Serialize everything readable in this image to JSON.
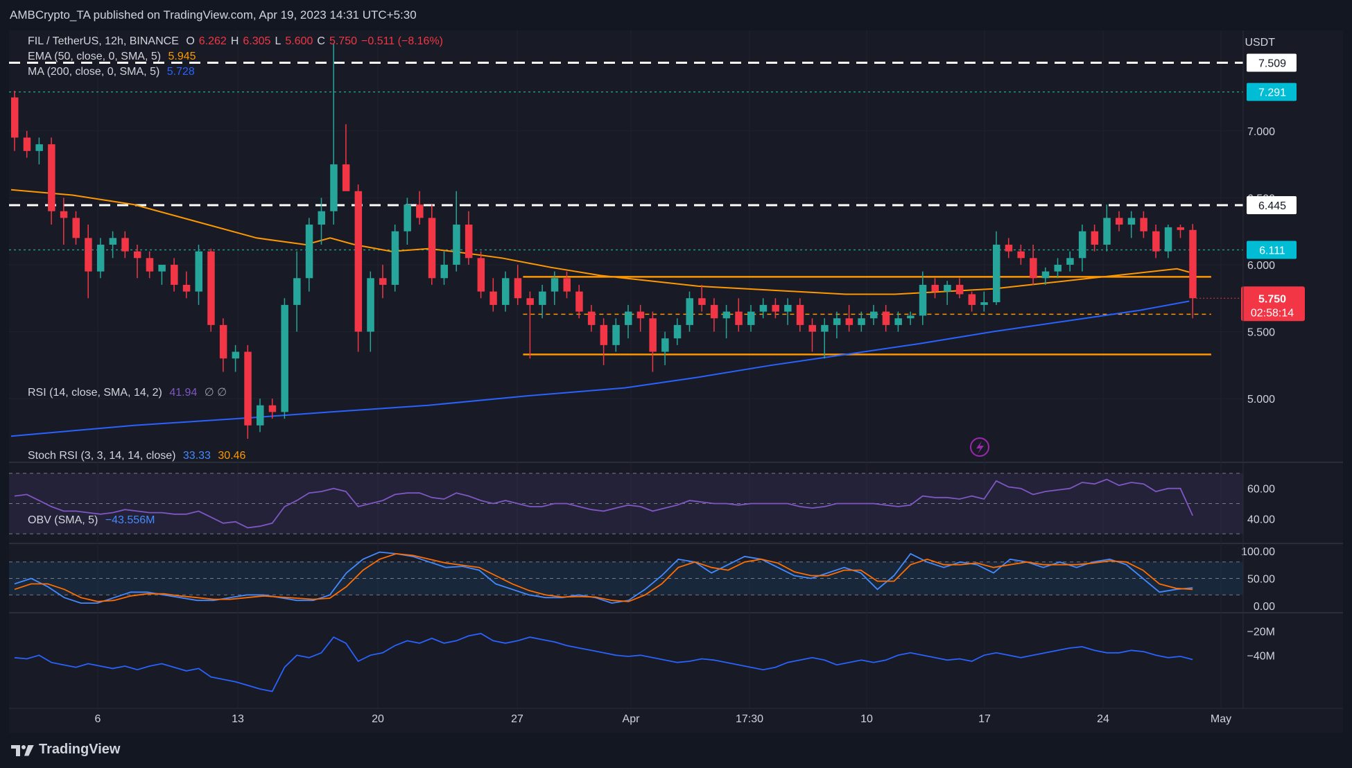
{
  "header": {
    "publisher": "AMBCrypto_TA published on TradingView.com, Apr 19, 2023 14:31 UTC+5:30"
  },
  "legend": {
    "symbol": "FIL / TetherUS, 12h, BINANCE",
    "o_label": "O",
    "o_value": "6.262",
    "h_label": "H",
    "h_value": "6.305",
    "l_label": "L",
    "l_value": "5.600",
    "c_label": "C",
    "c_value": "5.750",
    "change": "−0.511 (−8.16%)",
    "ema_label": "EMA (50, close, 0, SMA, 5)",
    "ema_value": "5.945",
    "ma_label": "MA (200, close, 0, SMA, 5)",
    "ma_value": "5.728",
    "rsi_label": "RSI (14, close, SMA, 14, 2)",
    "rsi_value": "41.94",
    "rsi_extra": "∅  ∅",
    "stoch_label": "Stoch RSI (3, 3, 14, 14, close)",
    "stoch_k": "33.33",
    "stoch_d": "30.46",
    "obv_label": "OBV (SMA, 5)",
    "obv_value": "−43.556M"
  },
  "footer": {
    "brand": "TradingView"
  },
  "colors": {
    "up": "#26a69a",
    "down": "#f23645",
    "ema": "#ff9800",
    "ma": "#2962ff",
    "rsi": "#7e57c2",
    "stoch_k": "#448aff",
    "stoch_d": "#ff6d00",
    "obv": "#2962ff",
    "level_white": "#ffffff",
    "level_cyan": "#22ab94",
    "range": "#ff9800"
  },
  "chart_data": {
    "type": "candlestick",
    "title": "FIL / TetherUS, 12h, BINANCE",
    "currency": "USDT",
    "price_axis_ticks": [
      "7.000",
      "6.500",
      "6.000",
      "5.500",
      "5.000"
    ],
    "price_ylim": [
      4.55,
      7.75
    ],
    "x_tick_labels": [
      "6",
      "13",
      "20",
      "27",
      "Apr",
      "17:30",
      "10",
      "17",
      "24",
      "May"
    ],
    "candles": [
      [
        7.25,
        7.3,
        6.85,
        6.95
      ],
      [
        6.95,
        7.0,
        6.8,
        6.85
      ],
      [
        6.85,
        6.95,
        6.75,
        6.9
      ],
      [
        6.9,
        6.95,
        6.3,
        6.4
      ],
      [
        6.4,
        6.5,
        6.15,
        6.35
      ],
      [
        6.35,
        6.4,
        6.15,
        6.2
      ],
      [
        6.2,
        6.3,
        5.75,
        5.95
      ],
      [
        5.95,
        6.2,
        5.9,
        6.15
      ],
      [
        6.15,
        6.25,
        6.05,
        6.2
      ],
      [
        6.2,
        6.25,
        6.05,
        6.1
      ],
      [
        6.1,
        6.15,
        5.9,
        6.05
      ],
      [
        6.05,
        6.1,
        5.9,
        5.95
      ],
      [
        5.95,
        6.0,
        5.85,
        6.0
      ],
      [
        6.0,
        6.05,
        5.8,
        5.85
      ],
      [
        5.85,
        5.95,
        5.75,
        5.8
      ],
      [
        5.8,
        6.15,
        5.7,
        6.1
      ],
      [
        6.1,
        6.12,
        5.5,
        5.55
      ],
      [
        5.55,
        5.6,
        5.2,
        5.3
      ],
      [
        5.3,
        5.4,
        5.2,
        5.35
      ],
      [
        5.35,
        5.4,
        4.7,
        4.8
      ],
      [
        4.8,
        5.0,
        4.75,
        4.95
      ],
      [
        4.95,
        5.0,
        4.85,
        4.9
      ],
      [
        4.9,
        5.75,
        4.85,
        5.7
      ],
      [
        5.7,
        6.1,
        5.5,
        5.9
      ],
      [
        5.9,
        6.35,
        5.8,
        6.3
      ],
      [
        6.3,
        6.5,
        6.15,
        6.4
      ],
      [
        6.4,
        7.65,
        6.3,
        6.75
      ],
      [
        6.75,
        7.05,
        6.55,
        6.55
      ],
      [
        6.55,
        6.6,
        5.35,
        5.5
      ],
      [
        5.5,
        5.95,
        5.35,
        5.9
      ],
      [
        5.9,
        6.0,
        5.75,
        5.85
      ],
      [
        5.85,
        6.3,
        5.8,
        6.25
      ],
      [
        6.25,
        6.5,
        6.15,
        6.45
      ],
      [
        6.45,
        6.55,
        6.3,
        6.35
      ],
      [
        6.35,
        6.45,
        5.85,
        5.9
      ],
      [
        5.9,
        6.1,
        5.85,
        6.0
      ],
      [
        6.0,
        6.55,
        5.95,
        6.3
      ],
      [
        6.3,
        6.4,
        6.0,
        6.05
      ],
      [
        6.05,
        6.1,
        5.75,
        5.8
      ],
      [
        5.8,
        5.9,
        5.65,
        5.7
      ],
      [
        5.7,
        5.95,
        5.65,
        5.9
      ],
      [
        5.9,
        6.0,
        5.7,
        5.75
      ],
      [
        5.75,
        5.8,
        5.3,
        5.7
      ],
      [
        5.7,
        5.85,
        5.6,
        5.8
      ],
      [
        5.8,
        5.95,
        5.7,
        5.9
      ],
      [
        5.9,
        5.95,
        5.75,
        5.8
      ],
      [
        5.8,
        5.85,
        5.6,
        5.65
      ],
      [
        5.65,
        5.7,
        5.5,
        5.55
      ],
      [
        5.55,
        5.6,
        5.25,
        5.4
      ],
      [
        5.4,
        5.6,
        5.35,
        5.55
      ],
      [
        5.55,
        5.7,
        5.45,
        5.65
      ],
      [
        5.65,
        5.7,
        5.5,
        5.6
      ],
      [
        5.6,
        5.65,
        5.2,
        5.35
      ],
      [
        5.35,
        5.5,
        5.25,
        5.45
      ],
      [
        5.45,
        5.6,
        5.4,
        5.55
      ],
      [
        5.55,
        5.8,
        5.5,
        5.75
      ],
      [
        5.75,
        5.85,
        5.65,
        5.7
      ],
      [
        5.7,
        5.75,
        5.5,
        5.6
      ],
      [
        5.6,
        5.7,
        5.45,
        5.65
      ],
      [
        5.65,
        5.75,
        5.5,
        5.55
      ],
      [
        5.55,
        5.7,
        5.5,
        5.65
      ],
      [
        5.65,
        5.75,
        5.6,
        5.7
      ],
      [
        5.7,
        5.75,
        5.6,
        5.65
      ],
      [
        5.65,
        5.75,
        5.55,
        5.7
      ],
      [
        5.7,
        5.75,
        5.5,
        5.55
      ],
      [
        5.55,
        5.6,
        5.35,
        5.5
      ],
      [
        5.5,
        5.6,
        5.3,
        5.55
      ],
      [
        5.55,
        5.65,
        5.45,
        5.6
      ],
      [
        5.6,
        5.7,
        5.5,
        5.55
      ],
      [
        5.55,
        5.65,
        5.5,
        5.6
      ],
      [
        5.6,
        5.7,
        5.55,
        5.65
      ],
      [
        5.65,
        5.7,
        5.5,
        5.55
      ],
      [
        5.55,
        5.65,
        5.5,
        5.6
      ],
      [
        5.6,
        5.65,
        5.55,
        5.62
      ],
      [
        5.62,
        5.95,
        5.55,
        5.85
      ],
      [
        5.85,
        5.9,
        5.75,
        5.8
      ],
      [
        5.8,
        5.88,
        5.7,
        5.85
      ],
      [
        5.85,
        5.9,
        5.75,
        5.78
      ],
      [
        5.78,
        5.8,
        5.65,
        5.7
      ],
      [
        5.7,
        5.8,
        5.65,
        5.72
      ],
      [
        5.72,
        6.25,
        5.7,
        6.15
      ],
      [
        6.15,
        6.2,
        6.05,
        6.1
      ],
      [
        6.1,
        6.15,
        6.0,
        6.05
      ],
      [
        6.05,
        6.15,
        5.85,
        5.9
      ],
      [
        5.9,
        5.98,
        5.85,
        5.95
      ],
      [
        5.95,
        6.05,
        5.9,
        6.0
      ],
      [
        6.0,
        6.1,
        5.95,
        6.05
      ],
      [
        6.05,
        6.3,
        5.95,
        6.25
      ],
      [
        6.25,
        6.3,
        6.1,
        6.15
      ],
      [
        6.15,
        6.45,
        6.1,
        6.35
      ],
      [
        6.35,
        6.4,
        6.25,
        6.3
      ],
      [
        6.3,
        6.4,
        6.2,
        6.35
      ],
      [
        6.35,
        6.4,
        6.2,
        6.25
      ],
      [
        6.25,
        6.3,
        6.05,
        6.1
      ],
      [
        6.1,
        6.3,
        6.05,
        6.28
      ],
      [
        6.28,
        6.3,
        6.2,
        6.26
      ],
      [
        6.26,
        6.305,
        5.6,
        5.75
      ]
    ],
    "ema50": [
      [
        0,
        6.56
      ],
      [
        5,
        6.52
      ],
      [
        10,
        6.45
      ],
      [
        16,
        6.3
      ],
      [
        20,
        6.2
      ],
      [
        24,
        6.15
      ],
      [
        26,
        6.2
      ],
      [
        28,
        6.15
      ],
      [
        31,
        6.1
      ],
      [
        34,
        6.12
      ],
      [
        36,
        6.1
      ],
      [
        40,
        6.05
      ],
      [
        44,
        5.98
      ],
      [
        48,
        5.92
      ],
      [
        52,
        5.88
      ],
      [
        56,
        5.84
      ],
      [
        60,
        5.82
      ],
      [
        64,
        5.8
      ],
      [
        68,
        5.78
      ],
      [
        72,
        5.78
      ],
      [
        76,
        5.8
      ],
      [
        80,
        5.82
      ],
      [
        84,
        5.86
      ],
      [
        88,
        5.9
      ],
      [
        92,
        5.94
      ],
      [
        95,
        5.97
      ],
      [
        96,
        5.945
      ]
    ],
    "ma200": [
      [
        0,
        4.72
      ],
      [
        10,
        4.8
      ],
      [
        20,
        4.86
      ],
      [
        26,
        4.9
      ],
      [
        34,
        4.95
      ],
      [
        42,
        5.02
      ],
      [
        50,
        5.08
      ],
      [
        56,
        5.16
      ],
      [
        62,
        5.25
      ],
      [
        68,
        5.33
      ],
      [
        74,
        5.41
      ],
      [
        80,
        5.5
      ],
      [
        86,
        5.58
      ],
      [
        92,
        5.66
      ],
      [
        96,
        5.728
      ]
    ],
    "horizontal_levels": [
      {
        "value": 7.509,
        "label": "7.509",
        "style": "white-dashed"
      },
      {
        "value": 7.291,
        "label": "7.291",
        "style": "cyan-dotted"
      },
      {
        "value": 6.445,
        "label": "6.445",
        "style": "white-dashed"
      },
      {
        "value": 6.111,
        "label": "6.111",
        "style": "cyan-dotted"
      }
    ],
    "range_box": {
      "start": 42,
      "end": 97,
      "upper": 5.91,
      "mid": 5.63,
      "lower": 5.33
    },
    "last_price": {
      "value": 5.75,
      "label": "5.750",
      "countdown": "02:58:14"
    },
    "rsi": {
      "ticks": [
        "60.00",
        "40.00"
      ],
      "ylim": [
        25,
        75
      ],
      "band": [
        30,
        70
      ],
      "values": [
        55,
        56,
        52,
        48,
        45,
        45,
        44,
        43,
        44,
        46,
        45,
        44,
        44,
        43,
        43,
        45,
        41,
        37,
        38,
        34,
        35,
        37,
        48,
        52,
        57,
        58,
        60,
        58,
        48,
        50,
        52,
        56,
        57,
        57,
        54,
        53,
        57,
        55,
        52,
        50,
        52,
        50,
        48,
        48,
        50,
        50,
        48,
        46,
        45,
        47,
        49,
        48,
        45,
        47,
        49,
        52,
        51,
        50,
        50,
        49,
        50,
        50,
        50,
        50,
        48,
        47,
        48,
        50,
        50,
        50,
        50,
        49,
        48,
        49,
        55,
        54,
        54,
        53,
        55,
        53,
        65,
        61,
        60,
        56,
        58,
        59,
        60,
        64,
        63,
        66,
        62,
        64,
        63,
        58,
        60,
        60,
        42
      ]
    },
    "stoch_rsi": {
      "ticks": [
        "100.00",
        "50.00",
        "0.00"
      ],
      "ylim": [
        -10,
        110
      ],
      "band": [
        20,
        80
      ],
      "k": [
        40,
        50,
        35,
        15,
        5,
        5,
        15,
        25,
        25,
        20,
        15,
        10,
        10,
        15,
        20,
        20,
        15,
        10,
        10,
        20,
        60,
        85,
        98,
        95,
        90,
        80,
        70,
        72,
        65,
        40,
        30,
        20,
        15,
        15,
        20,
        15,
        5,
        10,
        30,
        55,
        85,
        80,
        60,
        75,
        90,
        85,
        70,
        55,
        50,
        60,
        70,
        60,
        30,
        55,
        95,
        80,
        70,
        80,
        75,
        60,
        85,
        80,
        70,
        80,
        70,
        80,
        85,
        75,
        50,
        25,
        30,
        33
      ],
      "d": [
        30,
        40,
        40,
        30,
        15,
        8,
        10,
        18,
        22,
        22,
        18,
        15,
        12,
        12,
        15,
        18,
        16,
        14,
        12,
        14,
        35,
        65,
        85,
        95,
        92,
        85,
        78,
        74,
        70,
        55,
        40,
        28,
        20,
        16,
        17,
        16,
        10,
        8,
        20,
        40,
        70,
        80,
        70,
        65,
        80,
        85,
        78,
        62,
        55,
        55,
        65,
        65,
        45,
        45,
        75,
        85,
        75,
        75,
        78,
        70,
        75,
        80,
        75,
        75,
        75,
        78,
        82,
        80,
        65,
        40,
        32,
        30
      ]
    },
    "obv": {
      "ticks": [
        "−20M",
        "−40M"
      ],
      "values": [
        -42,
        -43,
        -40,
        -46,
        -48,
        -50,
        -47,
        -49,
        -51,
        -49,
        -52,
        -49,
        -47,
        -50,
        -53,
        -51,
        -58,
        -60,
        -62,
        -65,
        -68,
        -70,
        -50,
        -40,
        -42,
        -38,
        -25,
        -30,
        -45,
        -40,
        -38,
        -32,
        -28,
        -30,
        -26,
        -30,
        -28,
        -24,
        -22,
        -28,
        -30,
        -28,
        -25,
        -27,
        -29,
        -32,
        -34,
        -36,
        -38,
        -40,
        -41,
        -40,
        -42,
        -44,
        -46,
        -45,
        -43,
        -44,
        -46,
        -48,
        -50,
        -52,
        -50,
        -46,
        -44,
        -42,
        -44,
        -48,
        -46,
        -44,
        -46,
        -44,
        -40,
        -38,
        -40,
        -42,
        -44,
        -43,
        -45,
        -40,
        -38,
        -40,
        -42,
        -40,
        -38,
        -36,
        -34,
        -33,
        -36,
        -38,
        -38,
        -36,
        -37,
        -40,
        -42,
        -41,
        -43.556
      ]
    }
  }
}
